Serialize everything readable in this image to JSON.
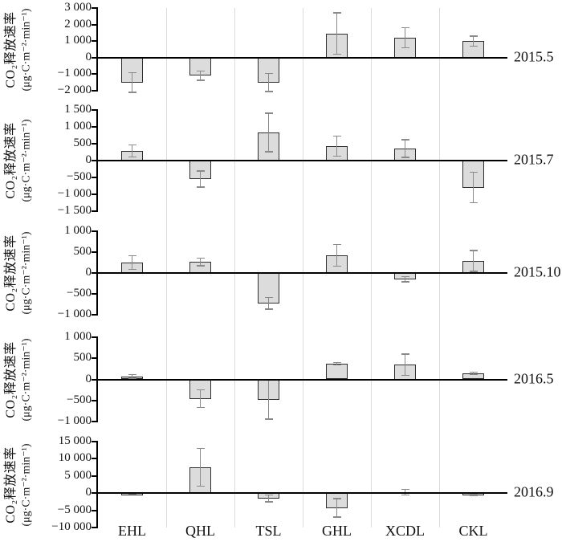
{
  "chart_data": {
    "type": "bar",
    "title": "",
    "xlabel": "",
    "ylabel": "CO₂释放速率",
    "yunit": "(μg·C·m⁻²·min⁻¹)",
    "categories": [
      "EHL",
      "QHL",
      "TSL",
      "GHL",
      "XCDL",
      "CKL"
    ],
    "grid": "vertical-category-separators",
    "legend": "none",
    "colors": {
      "bar_fill": "#dcdcdc",
      "bar_border": "#2e2e2e",
      "error_bar": "#8a8a8a",
      "gridline": "#dcdcdc",
      "axis": "#000000"
    },
    "panels": [
      {
        "label": "2015.5",
        "ylim": [
          -2000,
          3000
        ],
        "yticks": [
          3000,
          2000,
          1000,
          0,
          -1000,
          -2000
        ],
        "ytick_labels": [
          "3 000",
          "2 000",
          "1 000",
          "0",
          "−1 000",
          "−2 000"
        ],
        "values": [
          -1500,
          -1100,
          -1500,
          1450,
          1200,
          1000
        ],
        "errors": [
          600,
          280,
          550,
          1250,
          600,
          300
        ]
      },
      {
        "label": "2015.7",
        "ylim": [
          -1500,
          1500
        ],
        "yticks": [
          1500,
          1000,
          500,
          0,
          -500,
          -1000,
          -1500
        ],
        "ytick_labels": [
          "1 500",
          "1 000",
          "500",
          "0",
          "−500",
          "−1 000",
          "−1 500"
        ],
        "values": [
          290,
          -550,
          830,
          430,
          360,
          -800
        ],
        "errors": [
          180,
          240,
          570,
          300,
          260,
          450
        ]
      },
      {
        "label": "2015.10",
        "ylim": [
          -1000,
          1000
        ],
        "yticks": [
          1000,
          500,
          0,
          -500,
          -1000
        ],
        "ytick_labels": [
          "1 000",
          "500",
          "0",
          "−500",
          "−1 000"
        ],
        "values": [
          250,
          265,
          -730,
          420,
          -150,
          290
        ],
        "errors": [
          160,
          95,
          140,
          260,
          60,
          250
        ]
      },
      {
        "label": "2016.5",
        "ylim": [
          -1000,
          1000
        ],
        "yticks": [
          1000,
          500,
          0,
          -500,
          -1000
        ],
        "ytick_labels": [
          "1 000",
          "500",
          "0",
          "−500",
          "−1 000"
        ],
        "values": [
          70,
          -460,
          -480,
          370,
          350,
          140
        ],
        "errors": [
          40,
          210,
          460,
          30,
          250,
          30
        ]
      },
      {
        "label": "2016.9",
        "ylim": [
          -10000,
          15000
        ],
        "yticks": [
          15000,
          10000,
          5000,
          0,
          -5000,
          -10000
        ],
        "ytick_labels": [
          "15 000",
          "10 000",
          "5 000",
          "0",
          "−5 000",
          "−10 000"
        ],
        "values": [
          -200,
          7500,
          -1500,
          -4300,
          300,
          -500
        ],
        "errors": [
          100,
          5500,
          1000,
          2700,
          800,
          150
        ]
      }
    ]
  }
}
